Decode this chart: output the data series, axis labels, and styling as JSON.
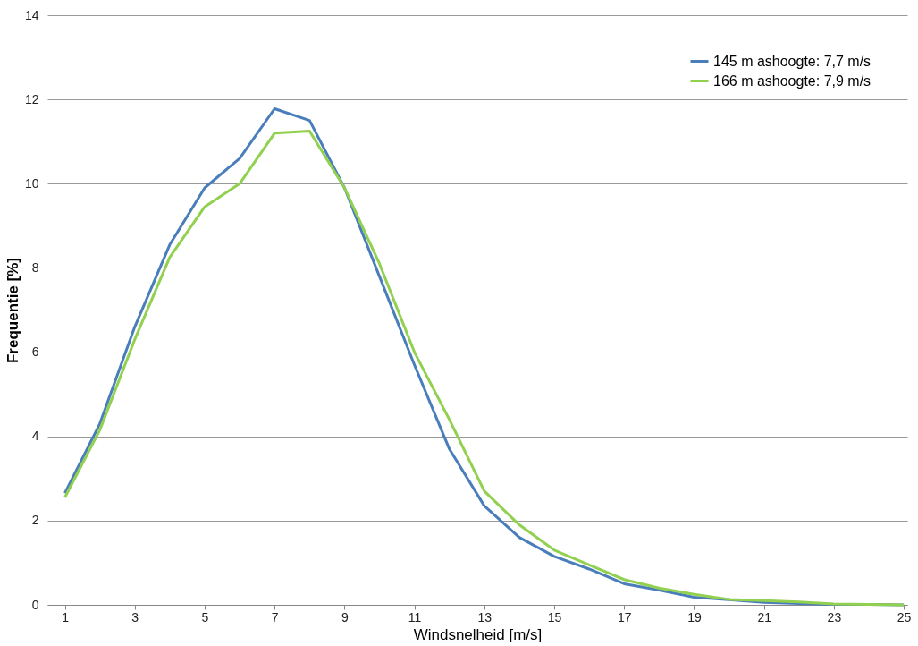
{
  "chart_data": {
    "type": "line",
    "xlabel": "Windsnelheid [m/s]",
    "ylabel": "Frequentie [%]",
    "x": [
      1,
      2,
      3,
      4,
      5,
      6,
      7,
      8,
      9,
      10,
      11,
      12,
      13,
      14,
      15,
      16,
      17,
      18,
      19,
      20,
      21,
      22,
      23,
      24,
      25
    ],
    "series": [
      {
        "name": "145 m ashoogte: 7,7 m/s",
        "color": "#4a7ebb",
        "values": [
          2.65,
          4.3,
          6.6,
          8.55,
          9.9,
          10.6,
          11.78,
          11.5,
          9.9,
          7.8,
          5.7,
          3.7,
          2.35,
          1.6,
          1.15,
          0.85,
          0.5,
          0.35,
          0.18,
          0.12,
          0.06,
          0.03,
          0.01,
          0.01,
          0
        ]
      },
      {
        "name": "166 m ashoogte: 7,9 m/s",
        "color": "#92d050",
        "values": [
          2.55,
          4.15,
          6.3,
          8.25,
          9.45,
          10.0,
          11.2,
          11.25,
          9.9,
          8.1,
          6.0,
          4.4,
          2.7,
          1.9,
          1.3,
          0.95,
          0.6,
          0.4,
          0.25,
          0.13,
          0.1,
          0.07,
          0.02,
          0.01,
          0
        ]
      }
    ],
    "xlim": [
      0.5,
      25.1
    ],
    "xticks": [
      1,
      3,
      5,
      7,
      9,
      11,
      13,
      15,
      17,
      19,
      21,
      23,
      25
    ],
    "ylim": [
      0,
      14
    ],
    "yticks": [
      0,
      2,
      4,
      6,
      8,
      10,
      12,
      14
    ],
    "grid": "y",
    "legend": "top right",
    "marker": "none",
    "line_style": "solid"
  }
}
